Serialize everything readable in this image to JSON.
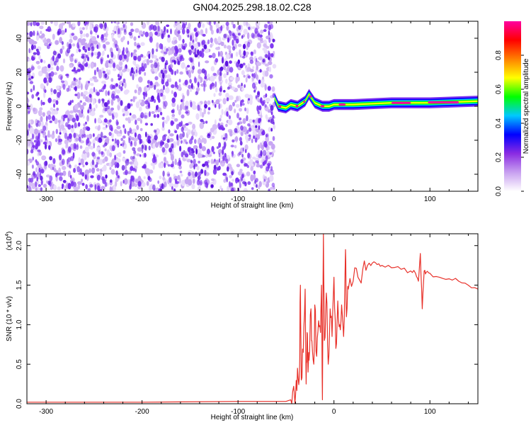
{
  "figure_title": "GN04.2025.298.18.02.C28",
  "colors": {
    "snr_line": "#e8312a",
    "noise_purple": "#7a2ff0",
    "colorbar_stops": [
      "#ffffff",
      "#c8a0f0",
      "#8a2be2",
      "#0000ff",
      "#00c8ff",
      "#00ff00",
      "#ffff00",
      "#ff8000",
      "#ff0000",
      "#ff00a0"
    ]
  },
  "chart_data": [
    {
      "type": "heatmap",
      "title": "",
      "xlabel": "Height of straight line (km)",
      "ylabel": "Frequency (Hz)",
      "xlim": [
        -320,
        150
      ],
      "ylim": [
        -50,
        50
      ],
      "xticks": [
        -300,
        -200,
        -100,
        0,
        100
      ],
      "yticks": [
        -40,
        -20,
        0,
        20,
        40
      ],
      "x_tick_labels": [
        "-300",
        "-200",
        "-100",
        "0",
        "100"
      ],
      "y_tick_labels": [
        "-40",
        "-20",
        "0",
        "20",
        "40"
      ],
      "noise_region_x": [
        -320,
        -62
      ],
      "signal_band": {
        "x_range": [
          -62,
          150
        ],
        "center_frequency": [
          [
            -62,
            5
          ],
          [
            -58,
            0
          ],
          [
            -50,
            -1
          ],
          [
            -45,
            1
          ],
          [
            -38,
            0
          ],
          [
            -30,
            3
          ],
          [
            -26,
            7
          ],
          [
            -20,
            2
          ],
          [
            -12,
            0
          ],
          [
            -5,
            0
          ],
          [
            0,
            1
          ],
          [
            20,
            1
          ],
          [
            60,
            2
          ],
          [
            100,
            2
          ],
          [
            150,
            3
          ]
        ],
        "peak_amplitude_segments": [
          {
            "x": [
              -58,
              -55
            ],
            "amplitude": 1.0
          },
          {
            "x": [
              -40,
              -37
            ],
            "amplitude": 1.0
          },
          {
            "x": [
              -32,
              -30
            ],
            "amplitude": 1.0
          },
          {
            "x": [
              -26,
              -23
            ],
            "amplitude": 1.0
          },
          {
            "x": [
              -14,
              -10
            ],
            "amplitude": 1.0
          },
          {
            "x": [
              5,
              12
            ],
            "amplitude": 1.0
          },
          {
            "x": [
              60,
              80
            ],
            "amplitude": 1.0
          },
          {
            "x": [
              98,
              130
            ],
            "amplitude": 1.0
          }
        ]
      },
      "colorbar": {
        "label": "Normalized spectral amplitude",
        "range": [
          0.0,
          1.0
        ],
        "ticks": [
          0.0,
          0.2,
          0.4,
          0.6,
          0.8
        ],
        "tick_labels": [
          "0.0",
          "0.2",
          "0.4",
          "0.6",
          "0.8"
        ]
      }
    },
    {
      "type": "line",
      "title": "",
      "xlabel": "Height of straight line (km)",
      "ylabel": "SNR (10 * v/v)",
      "scale_label": "(x10",
      "scale_exponent": "4",
      "scale_close": ")",
      "xlim": [
        -320,
        150
      ],
      "ylim": [
        0,
        2.15
      ],
      "xticks": [
        -300,
        -200,
        -100,
        0,
        100
      ],
      "yticks": [
        0.0,
        0.5,
        1.0,
        1.5,
        2.0
      ],
      "x_tick_labels": [
        "-300",
        "-200",
        "-100",
        "0",
        "100"
      ],
      "y_tick_labels": [
        "0.0",
        "0.5",
        "1.0",
        "1.5",
        "2.0"
      ],
      "series": [
        {
          "name": "SNR",
          "x": [
            -320,
            -200,
            -100,
            -50,
            -45,
            -42,
            -40,
            -38,
            -36,
            -35,
            -34,
            -32,
            -30,
            -29,
            -28,
            -27,
            -26,
            -24,
            -23,
            -21,
            -20,
            -18,
            -16,
            -14,
            -13,
            -12,
            -11,
            -10,
            -8,
            -6,
            -4,
            -2,
            0,
            2,
            4,
            6,
            8,
            10,
            12,
            13,
            15,
            20,
            25,
            30,
            35,
            40,
            45,
            50,
            60,
            70,
            80,
            85,
            88,
            90,
            92,
            94,
            96,
            100,
            110,
            120,
            130,
            140,
            150
          ],
          "y": [
            0.02,
            0.02,
            0.03,
            0.03,
            0.05,
            0.22,
            0.12,
            0.45,
            0.35,
            1.5,
            0.3,
            0.65,
            1.45,
            0.25,
            0.9,
            0.4,
            0.55,
            1.2,
            0.8,
            0.5,
            1.25,
            0.6,
            1.05,
            0.9,
            1.5,
            0.05,
            2.15,
            0.8,
            1.4,
            0.5,
            1.2,
            0.85,
            1.6,
            0.7,
            1.3,
            1.0,
            1.25,
            0.85,
            1.95,
            1.1,
            1.45,
            1.55,
            1.6,
            1.7,
            1.75,
            1.78,
            1.76,
            1.75,
            1.72,
            1.7,
            1.68,
            1.65,
            1.55,
            1.9,
            1.2,
            1.68,
            1.66,
            1.65,
            1.6,
            1.58,
            1.55,
            1.5,
            1.45
          ]
        }
      ]
    }
  ]
}
